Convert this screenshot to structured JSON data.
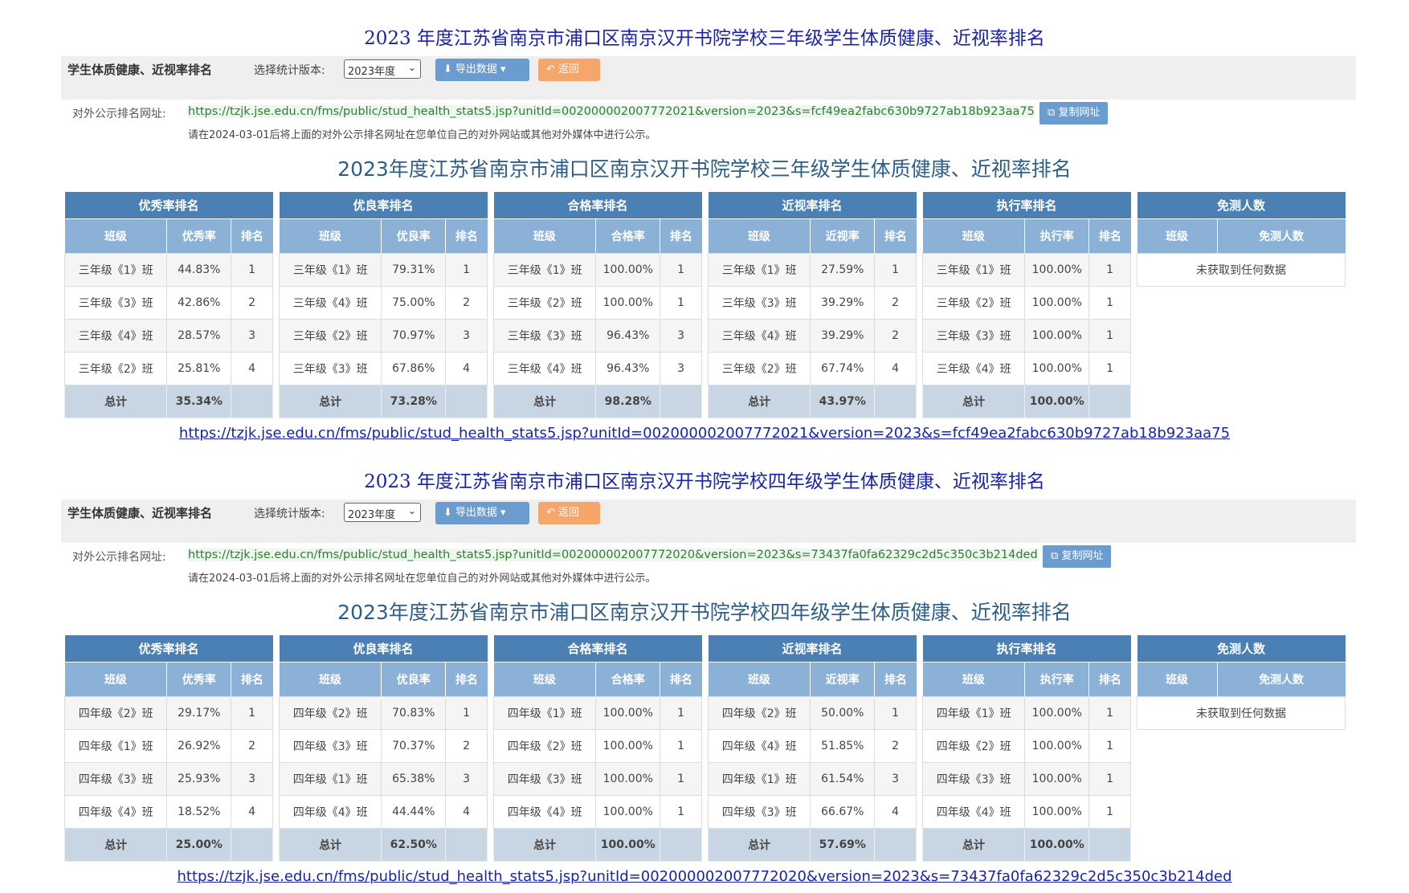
{
  "sections": [
    {
      "page_heading": "2023 年度江苏省南京市浦口区南京汉开书院学校三年级学生体质健康、近视率排名",
      "toolbar": {
        "title": "学生体质健康、近视率排名",
        "version_label": "选择统计版本:",
        "version_value": "2023年度",
        "export_label": "导出数据",
        "back_label": "返回"
      },
      "public_url_label": "对外公示排名网址:",
      "public_url": "https://tzjk.jse.edu.cn/fms/public/stud_health_stats5.jsp?unitId=002000002007772021&version=2023&s=fcf49ea2fabc630b9727ab18b923aa75",
      "copy_label": "复制网址",
      "note": "请在2024-03-01后将上面的对外公示排名网址在您单位自己的对外网站或其他对外媒体中进行公示。",
      "table_heading": "2023年度江苏省南京市浦口区南京汉开书院学校三年级学生体质健康、近视率排名",
      "tables": [
        {
          "caption": "优秀率排名",
          "columns": [
            "班级",
            "优秀率",
            "排名"
          ],
          "rows": [
            [
              "三年级《1》班",
              "44.83%",
              "1"
            ],
            [
              "三年级《3》班",
              "42.86%",
              "2"
            ],
            [
              "三年级《4》班",
              "28.57%",
              "3"
            ],
            [
              "三年级《2》班",
              "25.81%",
              "4"
            ]
          ],
          "total": [
            "总计",
            "35.34%",
            ""
          ]
        },
        {
          "caption": "优良率排名",
          "columns": [
            "班级",
            "优良率",
            "排名"
          ],
          "rows": [
            [
              "三年级《1》班",
              "79.31%",
              "1"
            ],
            [
              "三年级《4》班",
              "75.00%",
              "2"
            ],
            [
              "三年级《2》班",
              "70.97%",
              "3"
            ],
            [
              "三年级《3》班",
              "67.86%",
              "4"
            ]
          ],
          "total": [
            "总计",
            "73.28%",
            ""
          ]
        },
        {
          "caption": "合格率排名",
          "columns": [
            "班级",
            "合格率",
            "排名"
          ],
          "rows": [
            [
              "三年级《1》班",
              "100.00%",
              "1"
            ],
            [
              "三年级《2》班",
              "100.00%",
              "1"
            ],
            [
              "三年级《3》班",
              "96.43%",
              "3"
            ],
            [
              "三年级《4》班",
              "96.43%",
              "3"
            ]
          ],
          "total": [
            "总计",
            "98.28%",
            ""
          ]
        },
        {
          "caption": "近视率排名",
          "columns": [
            "班级",
            "近视率",
            "排名"
          ],
          "rows": [
            [
              "三年级《1》班",
              "27.59%",
              "1"
            ],
            [
              "三年级《3》班",
              "39.29%",
              "2"
            ],
            [
              "三年级《4》班",
              "39.29%",
              "2"
            ],
            [
              "三年级《2》班",
              "67.74%",
              "4"
            ]
          ],
          "total": [
            "总计",
            "43.97%",
            ""
          ]
        },
        {
          "caption": "执行率排名",
          "columns": [
            "班级",
            "执行率",
            "排名"
          ],
          "rows": [
            [
              "三年级《1》班",
              "100.00%",
              "1"
            ],
            [
              "三年级《2》班",
              "100.00%",
              "1"
            ],
            [
              "三年级《3》班",
              "100.00%",
              "1"
            ],
            [
              "三年级《4》班",
              "100.00%",
              "1"
            ]
          ],
          "total": [
            "总计",
            "100.00%",
            ""
          ]
        }
      ],
      "exempt": {
        "caption": "免测人数",
        "columns": [
          "班级",
          "免测人数"
        ],
        "empty_text": "未获取到任何数据"
      },
      "link": "https://tzjk.jse.edu.cn/fms/public/stud_health_stats5.jsp?unitId=002000002007772021&version=2023&s=fcf49ea2fabc630b9727ab18b923aa75"
    },
    {
      "page_heading": "2023 年度江苏省南京市浦口区南京汉开书院学校四年级学生体质健康、近视率排名",
      "toolbar": {
        "title": "学生体质健康、近视率排名",
        "version_label": "选择统计版本:",
        "version_value": "2023年度",
        "export_label": "导出数据",
        "back_label": "返回"
      },
      "public_url_label": "对外公示排名网址:",
      "public_url": "https://tzjk.jse.edu.cn/fms/public/stud_health_stats5.jsp?unitId=002000002007772020&version=2023&s=73437fa0fa62329c2d5c350c3b214ded",
      "copy_label": "复制网址",
      "note": "请在2024-03-01后将上面的对外公示排名网址在您单位自己的对外网站或其他对外媒体中进行公示。",
      "table_heading": "2023年度江苏省南京市浦口区南京汉开书院学校四年级学生体质健康、近视率排名",
      "tables": [
        {
          "caption": "优秀率排名",
          "columns": [
            "班级",
            "优秀率",
            "排名"
          ],
          "rows": [
            [
              "四年级《2》班",
              "29.17%",
              "1"
            ],
            [
              "四年级《1》班",
              "26.92%",
              "2"
            ],
            [
              "四年级《3》班",
              "25.93%",
              "3"
            ],
            [
              "四年级《4》班",
              "18.52%",
              "4"
            ]
          ],
          "total": [
            "总计",
            "25.00%",
            ""
          ]
        },
        {
          "caption": "优良率排名",
          "columns": [
            "班级",
            "优良率",
            "排名"
          ],
          "rows": [
            [
              "四年级《2》班",
              "70.83%",
              "1"
            ],
            [
              "四年级《3》班",
              "70.37%",
              "2"
            ],
            [
              "四年级《1》班",
              "65.38%",
              "3"
            ],
            [
              "四年级《4》班",
              "44.44%",
              "4"
            ]
          ],
          "total": [
            "总计",
            "62.50%",
            ""
          ]
        },
        {
          "caption": "合格率排名",
          "columns": [
            "班级",
            "合格率",
            "排名"
          ],
          "rows": [
            [
              "四年级《1》班",
              "100.00%",
              "1"
            ],
            [
              "四年级《2》班",
              "100.00%",
              "1"
            ],
            [
              "四年级《3》班",
              "100.00%",
              "1"
            ],
            [
              "四年级《4》班",
              "100.00%",
              "1"
            ]
          ],
          "total": [
            "总计",
            "100.00%",
            ""
          ]
        },
        {
          "caption": "近视率排名",
          "columns": [
            "班级",
            "近视率",
            "排名"
          ],
          "rows": [
            [
              "四年级《2》班",
              "50.00%",
              "1"
            ],
            [
              "四年级《4》班",
              "51.85%",
              "2"
            ],
            [
              "四年级《1》班",
              "61.54%",
              "3"
            ],
            [
              "四年级《3》班",
              "66.67%",
              "4"
            ]
          ],
          "total": [
            "总计",
            "57.69%",
            ""
          ]
        },
        {
          "caption": "执行率排名",
          "columns": [
            "班级",
            "执行率",
            "排名"
          ],
          "rows": [
            [
              "四年级《1》班",
              "100.00%",
              "1"
            ],
            [
              "四年级《2》班",
              "100.00%",
              "1"
            ],
            [
              "四年级《3》班",
              "100.00%",
              "1"
            ],
            [
              "四年级《4》班",
              "100.00%",
              "1"
            ]
          ],
          "total": [
            "总计",
            "100.00%",
            ""
          ]
        }
      ],
      "exempt": {
        "caption": "免测人数",
        "columns": [
          "班级",
          "免测人数"
        ],
        "empty_text": "未获取到任何数据"
      },
      "link": "https://tzjk.jse.edu.cn/fms/public/stud_health_stats5.jsp?unitId=002000002007772020&version=2023&s=73437fa0fa62329c2d5c350c3b214ded"
    }
  ]
}
